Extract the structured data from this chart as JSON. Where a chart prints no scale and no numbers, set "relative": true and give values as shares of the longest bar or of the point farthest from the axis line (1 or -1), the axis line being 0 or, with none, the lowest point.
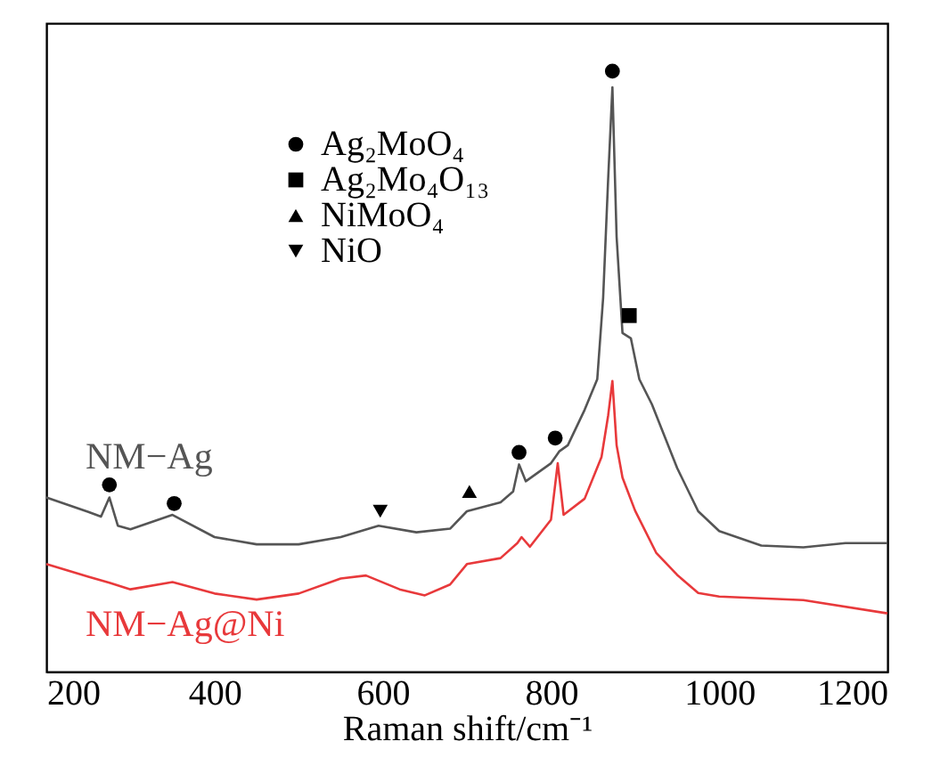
{
  "chart_data": {
    "type": "line",
    "relative": true,
    "xlabel": "Raman shift/cm⁻¹",
    "xlim": [
      200,
      1200
    ],
    "xticks": [
      200,
      400,
      600,
      800,
      1000,
      1200
    ],
    "tick_labels": "x",
    "grid": false,
    "legend": "top left",
    "series": [
      {
        "name": "NM−Ag",
        "color": "#555555",
        "marker": "none",
        "line_style": "solid",
        "x": [
          200,
          250,
          265,
          275,
          285,
          300,
          350,
          400,
          450,
          500,
          550,
          595,
          640,
          680,
          700,
          740,
          755,
          762,
          770,
          800,
          810,
          820,
          840,
          855,
          862,
          868,
          873,
          878,
          885,
          895,
          905,
          920,
          950,
          975,
          1000,
          1050,
          1100,
          1150,
          1200
        ],
        "values": [
          0.29,
          0.266,
          0.258,
          0.29,
          0.243,
          0.237,
          0.261,
          0.224,
          0.212,
          0.212,
          0.224,
          0.243,
          0.232,
          0.238,
          0.267,
          0.282,
          0.3,
          0.345,
          0.317,
          0.347,
          0.367,
          0.377,
          0.436,
          0.487,
          0.623,
          0.822,
          0.973,
          0.724,
          0.564,
          0.555,
          0.487,
          0.445,
          0.339,
          0.267,
          0.234,
          0.21,
          0.207,
          0.214,
          0.214
        ]
      },
      {
        "name": "NM−Ag@Ni",
        "color": "#e8393b",
        "marker": "none",
        "line_style": "solid",
        "x": [
          200,
          250,
          275,
          300,
          350,
          400,
          450,
          500,
          550,
          580,
          620,
          650,
          680,
          700,
          740,
          760,
          765,
          775,
          800,
          808,
          815,
          840,
          860,
          868,
          873,
          878,
          885,
          900,
          925,
          950,
          975,
          1000,
          1100,
          1200
        ],
        "values": [
          0.179,
          0.158,
          0.148,
          0.137,
          0.149,
          0.13,
          0.12,
          0.13,
          0.155,
          0.16,
          0.137,
          0.127,
          0.145,
          0.179,
          0.189,
          0.214,
          0.224,
          0.208,
          0.253,
          0.347,
          0.261,
          0.288,
          0.357,
          0.427,
          0.484,
          0.377,
          0.323,
          0.268,
          0.198,
          0.161,
          0.131,
          0.125,
          0.119,
          0.097
        ]
      },
      {
        "name": "Ag₂MoO₄",
        "type": "scatter",
        "color": "#000000",
        "marker": "circle",
        "x": [
          275,
          352,
          762,
          805,
          873
        ],
        "values": [
          0.311,
          0.28,
          0.365,
          0.389,
          1.0
        ]
      },
      {
        "name": "Ag₂Mo₄O₁₃",
        "type": "scatter",
        "color": "#000000",
        "marker": "square",
        "x": [
          893
        ],
        "values": [
          0.593
        ]
      },
      {
        "name": "NiMoO₄",
        "type": "scatter",
        "color": "#000000",
        "marker": "triangle",
        "x": [
          703
        ],
        "values": [
          0.3
        ]
      },
      {
        "name": "NiO",
        "type": "scatter",
        "color": "#000000",
        "marker": "triangle-down",
        "x": [
          597
        ],
        "values": [
          0.267
        ]
      }
    ]
  }
}
